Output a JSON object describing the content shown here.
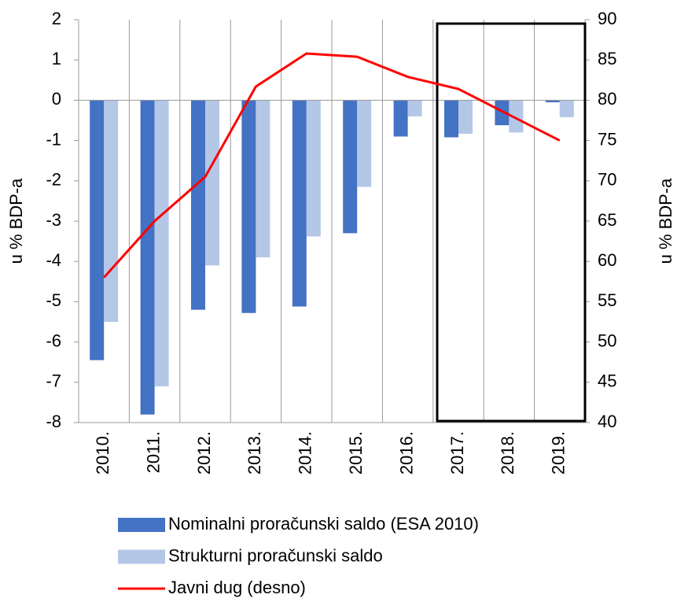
{
  "chart_data": {
    "type": "bar",
    "categories": [
      "2010.",
      "2011.",
      "2012.",
      "2013.",
      "2014.",
      "2015.",
      "2016.",
      "2017.",
      "2018.",
      "2019."
    ],
    "series": [
      {
        "name": "Nominalni proračunski saldo (ESA 2010)",
        "color": "#4472c4",
        "values": [
          -6.45,
          -7.8,
          -5.2,
          -5.28,
          -5.12,
          -3.3,
          -0.9,
          -0.92,
          -0.62,
          -0.05
        ]
      },
      {
        "name": "Strukturni proračunski saldo",
        "color": "#b4c7e7",
        "values": [
          -5.5,
          -7.1,
          -4.1,
          -3.9,
          -3.38,
          -2.15,
          -0.4,
          -0.83,
          -0.8,
          -0.42
        ]
      },
      {
        "name": "Javni dug (desno)",
        "color": "#ff0000",
        "type": "line",
        "axis": "y2",
        "values": [
          58,
          65,
          70.5,
          81.7,
          85.8,
          85.4,
          82.9,
          81.4,
          78.2,
          75
        ]
      }
    ],
    "ylabel": "u % BDP-a",
    "y2label": "u % BDP-a",
    "ylim": [
      -8,
      2
    ],
    "yticks": [
      -8,
      -7,
      -6,
      -5,
      -4,
      -3,
      -2,
      -1,
      0,
      1,
      2
    ],
    "y2lim": [
      40,
      90
    ],
    "y2ticks": [
      40,
      45,
      50,
      55,
      60,
      65,
      70,
      75,
      80,
      85,
      90
    ],
    "grid": true
  }
}
